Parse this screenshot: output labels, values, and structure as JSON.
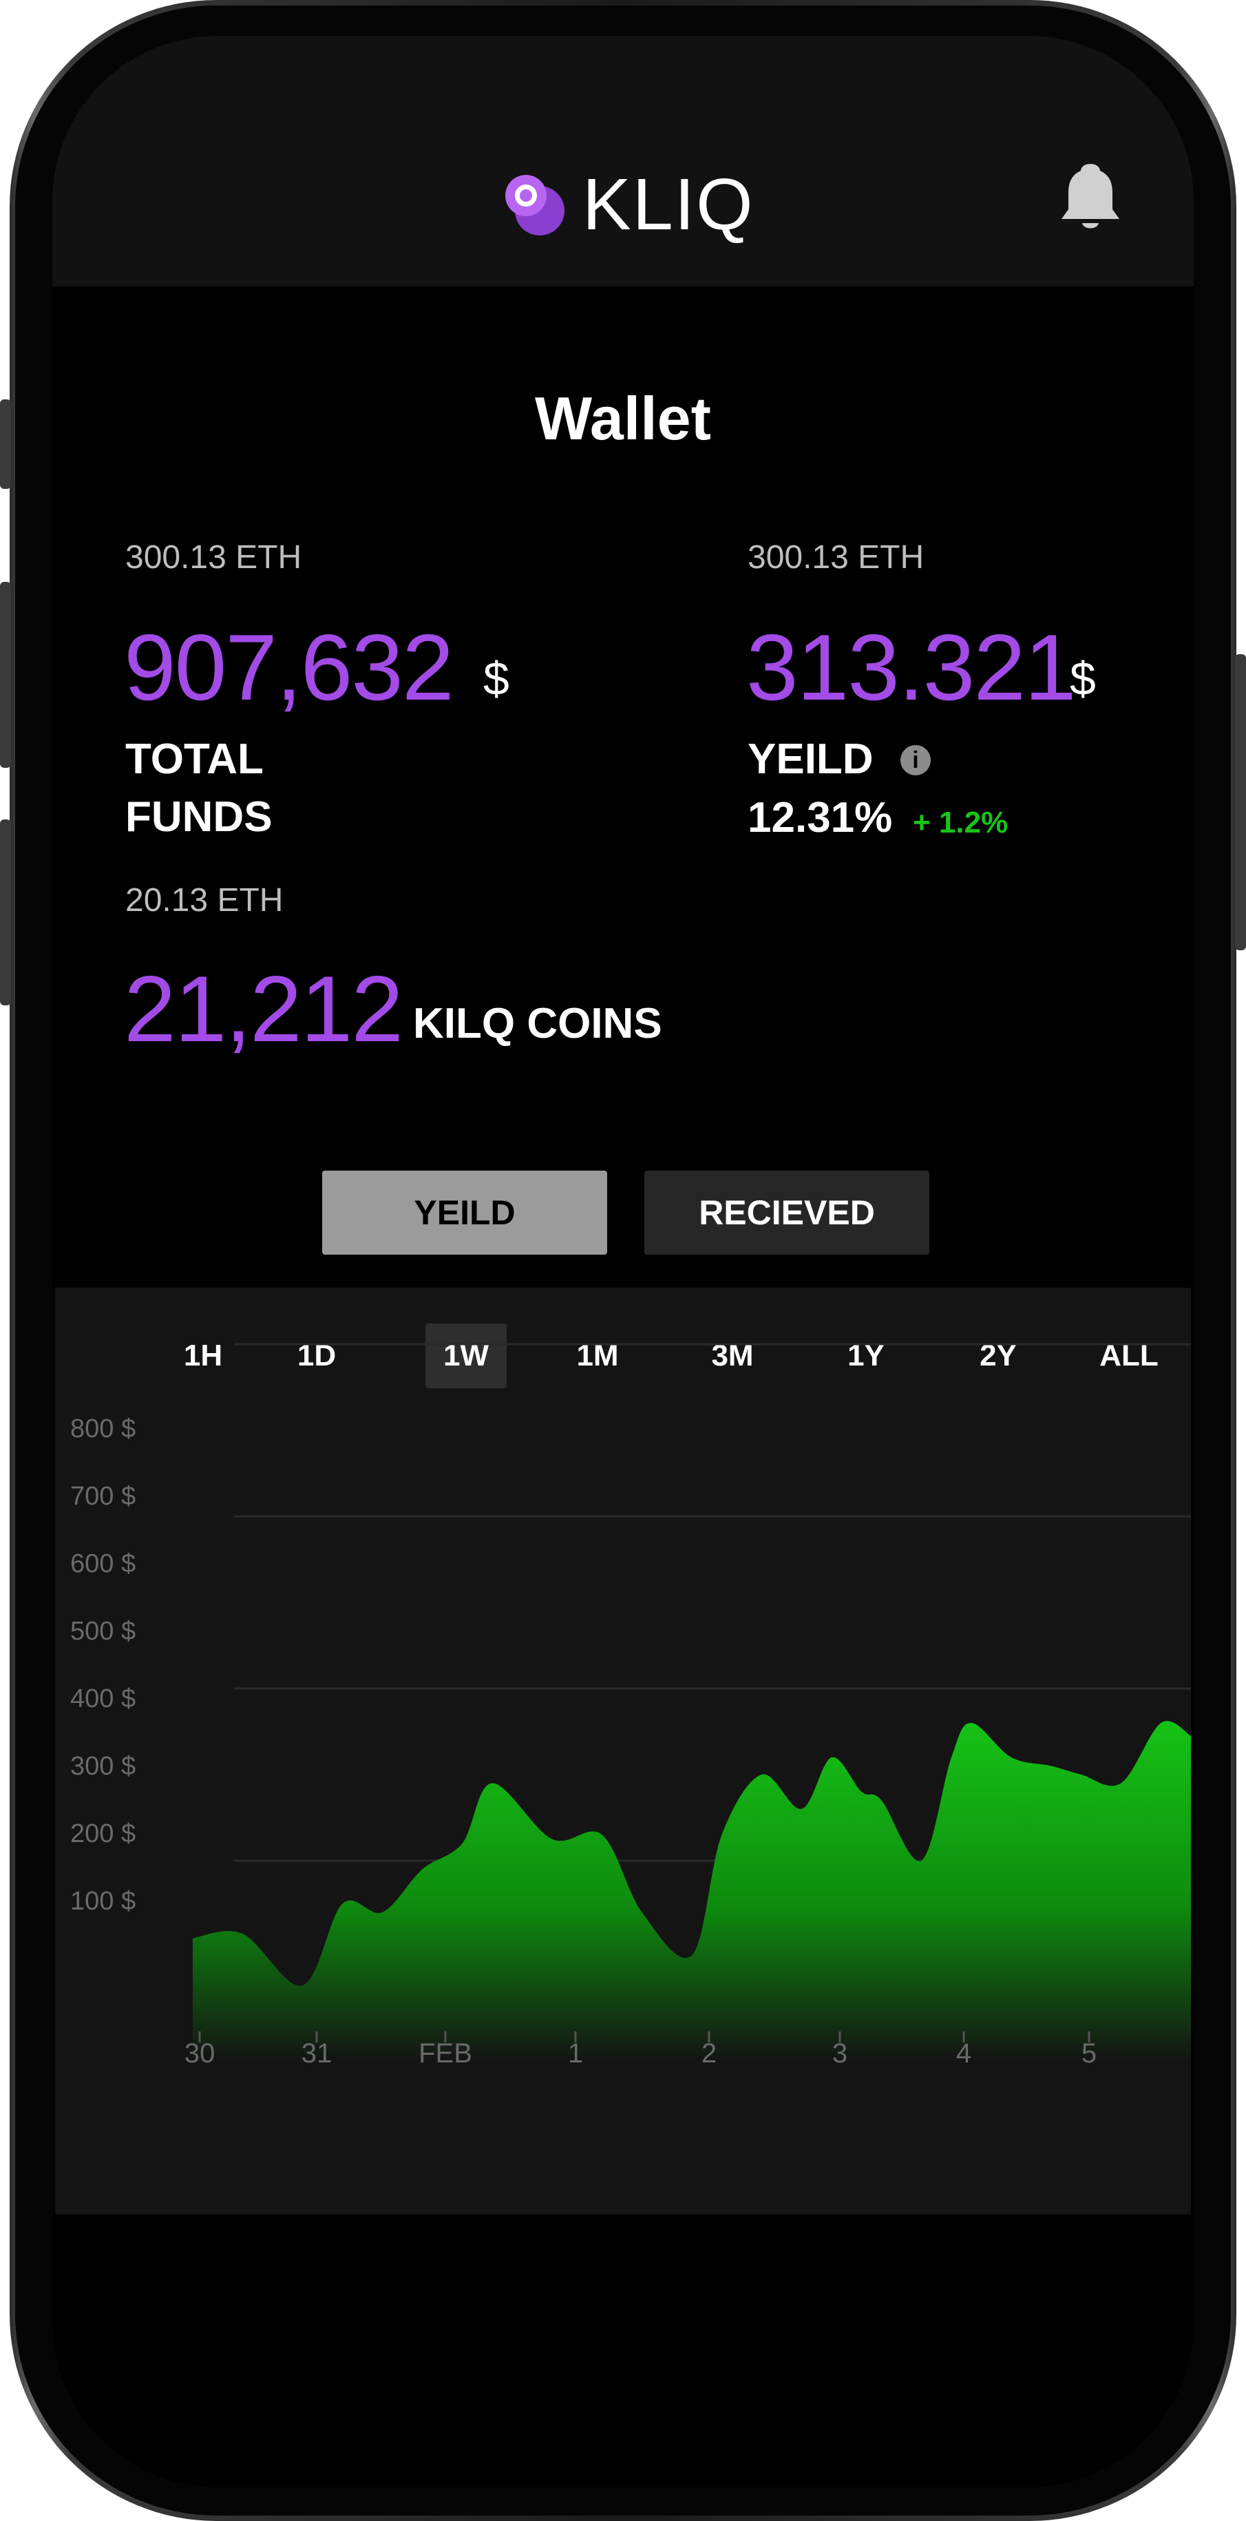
{
  "app": {
    "brand": "KLIQ",
    "page_title": "Wallet"
  },
  "total_funds": {
    "eth": "300.13 ETH",
    "value": "907,632",
    "currency": "$",
    "label_line1": "TOTAL",
    "label_line2": "FUNDS"
  },
  "yield": {
    "eth": "300.13 ETH",
    "value": "313.321",
    "currency": "$",
    "label": "YEILD",
    "info": "i",
    "percent": "12.31%",
    "delta": "+ 1.2%"
  },
  "coins": {
    "eth": "20.13 ETH",
    "value": "21,212",
    "label": "KILQ COINS"
  },
  "toggles": {
    "yield_label": "YEILD",
    "received_label": "RECIEVED"
  },
  "ranges": [
    "1H",
    "1D",
    "1W",
    "1M",
    "3M",
    "1Y",
    "2Y",
    "ALL"
  ],
  "selected_range": "1W",
  "colors": {
    "accent": "#a24be6",
    "positive": "#19c419",
    "chart_fill_top": "#16c216",
    "background": "#000000"
  },
  "icons": {
    "logo": "kliq-logo-icon",
    "notifications": "bell-icon",
    "info": "info-icon"
  },
  "chart_data": {
    "type": "area",
    "y_ticks": [
      "800 $",
      "700 $",
      "600 $",
      "500 $",
      "400 $",
      "300 $",
      "200 $",
      "100 $"
    ],
    "x_ticks": [
      "30",
      "31",
      "FEB",
      "1",
      "2",
      "3",
      "4",
      "5"
    ],
    "ylim": [
      0,
      800
    ],
    "series": [
      {
        "x": [
          0.0,
          0.05,
          0.11,
          0.15,
          0.19,
          0.23,
          0.27,
          0.3,
          0.36,
          0.41,
          0.45,
          0.5,
          0.53,
          0.57,
          0.61,
          0.64,
          0.67,
          0.69,
          0.73,
          0.76,
          0.78,
          0.82,
          0.86,
          0.89,
          0.93,
          0.97,
          1.0
        ],
        "values": [
          110,
          115,
          55,
          150,
          140,
          190,
          220,
          290,
          225,
          230,
          140,
          90,
          230,
          300,
          260,
          320,
          280,
          270,
          200,
          320,
          360,
          320,
          310,
          300,
          290,
          360,
          345
        ]
      }
    ]
  }
}
